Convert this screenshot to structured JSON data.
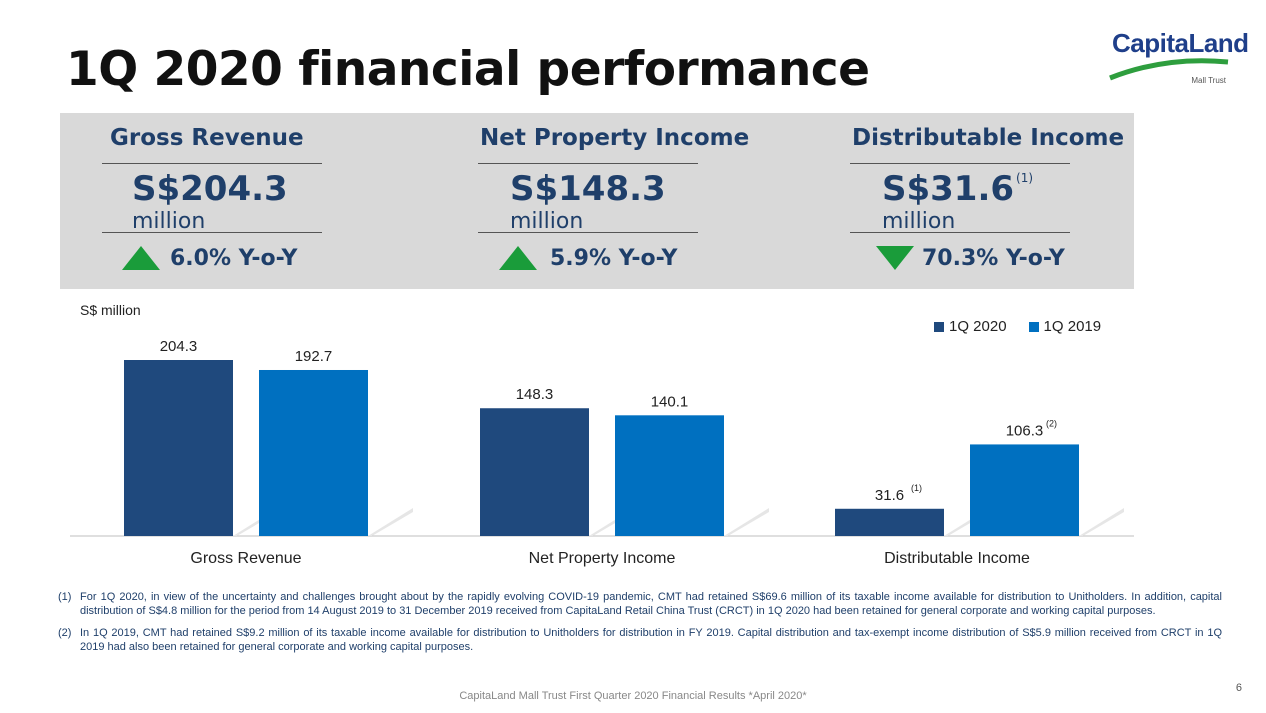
{
  "title": "1Q 2020 financial performance",
  "logo": {
    "word": "CapitaLand",
    "sub": "Mall Trust"
  },
  "kpis": [
    {
      "title": "Gross Revenue",
      "value": "S$204.3",
      "note": "",
      "unit": "million",
      "change": "6.0% Y-o-Y",
      "direction": "up"
    },
    {
      "title": "Net Property Income",
      "value": "S$148.3",
      "note": "",
      "unit": "million",
      "change": "5.9% Y-o-Y",
      "direction": "up"
    },
    {
      "title": "Distributable Income",
      "value": "S$31.6",
      "note": "(1)",
      "unit": "million",
      "change": "70.3% Y-o-Y",
      "direction": "down"
    }
  ],
  "colors": {
    "series_2020": "#1f497d",
    "series_2019": "#0070c0",
    "up": "#1a9c3a",
    "down": "#1a9c3a",
    "panel": "#d9d9d9"
  },
  "chart_data": {
    "type": "bar",
    "ylabel": "S$ million",
    "categories": [
      "Gross Revenue",
      "Net Property Income",
      "Distributable Income"
    ],
    "series": [
      {
        "name": "1Q 2020",
        "values": [
          204.3,
          148.3,
          31.6
        ],
        "labels": [
          "204.3",
          "148.3",
          "31.6"
        ],
        "notes": [
          "",
          "",
          "(1)"
        ]
      },
      {
        "name": "1Q 2019",
        "values": [
          192.7,
          140.1,
          106.3
        ],
        "labels": [
          "192.7",
          "140.1",
          "106.3"
        ],
        "notes": [
          "",
          "",
          "(2)"
        ]
      }
    ],
    "legend_position": "top-right",
    "grid": false
  },
  "footnotes": [
    {
      "num": "(1)",
      "text": "For 1Q 2020, in view of the uncertainty and challenges brought about by the rapidly evolving COVID-19 pandemic, CMT had retained S$69.6 million of its taxable income available for distribution to Unitholders. In addition, capital distribution of S$4.8 million for the period from 14 August 2019 to 31 December 2019 received from CapitaLand Retail China Trust (CRCT) in 1Q 2020 had been retained for general corporate and working capital purposes."
    },
    {
      "num": "(2)",
      "text": "In 1Q 2019, CMT had retained S$9.2 million of its taxable income available for distribution to Unitholders for distribution in FY 2019. Capital distribution and tax-exempt income distribution of S$5.9 million received from CRCT in 1Q 2019 had also been retained for general corporate and working capital purposes."
    }
  ],
  "footer": "CapitaLand Mall Trust First Quarter 2020 Financial Results *April 2020*",
  "page_number": "6"
}
